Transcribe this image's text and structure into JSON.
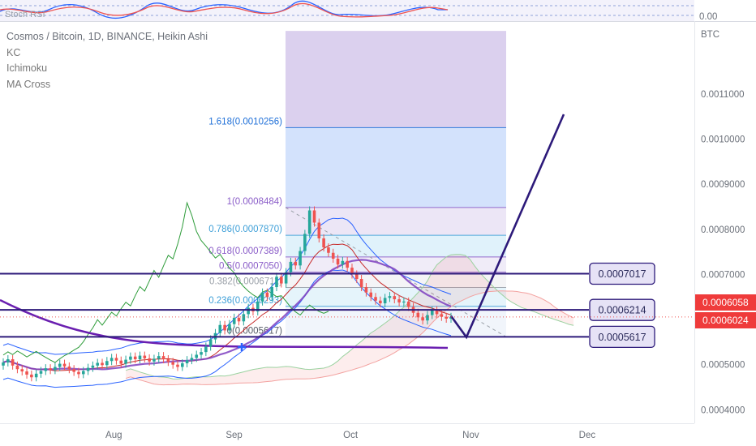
{
  "legend": {
    "title": "Cosmos / Bitcoin, 1D, BINANCE, Heikin Ashi",
    "indicators": [
      "KC",
      "Ichimoku",
      "MA Cross"
    ]
  },
  "stoch_label": "Stoch RSI",
  "stoch_value": "0.00",
  "currency": "BTC",
  "colors": {
    "up": "#26a69a",
    "down": "#ef5350",
    "drawing": "#2d1a7a",
    "kc": "#2962ff",
    "ma_fast": "#c62828",
    "ma_slow": "#7e3fbf",
    "ma_long": "#6a1fb0",
    "lagging": "#2e9c3a",
    "tag_red": "#ef3b3b"
  },
  "chart_data": {
    "type": "candlestick",
    "ylim": [
      0.00037,
      0.00126
    ],
    "y_ticks": [
      "0.0011000",
      "0.0010000",
      "0.0009000",
      "0.0008000",
      "0.0007000",
      "0.0005000",
      "0.0004000"
    ],
    "y_tick_values": [
      0.0011,
      0.001,
      0.0009,
      0.0008,
      0.0007,
      0.0005,
      0.0004
    ],
    "x_ticks": [
      {
        "label": "Aug",
        "day": 31
      },
      {
        "label": "Sep",
        "day": 62
      },
      {
        "label": "Oct",
        "day": 92
      },
      {
        "label": "Nov",
        "day": 123
      },
      {
        "label": "Dec",
        "day": 153
      }
    ],
    "x_range_days": [
      0,
      170
    ],
    "candles": [],
    "fib": {
      "start_day": 64,
      "end_day": 114,
      "levels": [
        {
          "label": "1.618(0.0010256)",
          "value": 0.0010256,
          "color": "#1e6fd8"
        },
        {
          "label": "1(0.0008484)",
          "value": 0.0008484,
          "color": "#8a5cc8"
        },
        {
          "label": "0.786(0.0007870)",
          "value": 0.000787,
          "color": "#3fa0d8"
        },
        {
          "label": "0.618(0.0007389)",
          "value": 0.0007389,
          "color": "#8a5cc8"
        },
        {
          "label": "0.5(0.0007050)",
          "value": 0.000705,
          "color": "#8a5cc8"
        },
        {
          "label": "0.382(0.0006711)",
          "value": 0.0006711,
          "color": "#9aa0a8"
        },
        {
          "label": "0.236(0.0006293)",
          "value": 0.0006293,
          "color": "#3fa0d8"
        },
        {
          "label": "0(0.0005617)",
          "value": 0.0005617,
          "color": "#555a66"
        }
      ],
      "top_value": 0.00124
    },
    "horizontal_levels": [
      {
        "label": "0.0007017",
        "value": 0.0007017
      },
      {
        "label": "0.0006214",
        "value": 0.0006214
      },
      {
        "label": "0.0005617",
        "value": 0.0005617
      }
    ],
    "price_tags": [
      {
        "label": "0.0006058",
        "value": 0.0006058
      },
      {
        "label": "0.0006024",
        "value": 0.0006024
      }
    ],
    "projection": [
      {
        "day": 100,
        "value": 0.000608
      },
      {
        "day": 105,
        "value": 0.000561
      },
      {
        "day": 127,
        "value": 0.001055
      }
    ],
    "candle_values": {
      "closes": [
        0.000505,
        0.000512,
        0.000498,
        0.00049,
        0.000485,
        0.000478,
        0.000472,
        0.00048,
        0.000486,
        0.000492,
        0.000488,
        0.000495,
        0.000502,
        0.000496,
        0.00049,
        0.000484,
        0.000479,
        0.000486,
        0.000493,
        0.000498,
        0.000504,
        0.000499,
        0.000508,
        0.000515,
        0.000509,
        0.000502,
        0.000511,
        0.000518,
        0.000512,
        0.00052,
        0.000514,
        0.000507,
        0.000513,
        0.000519,
        0.000512,
        0.000506,
        0.0005,
        0.000495,
        0.000503,
        0.00051,
        0.000515,
        0.000522,
        0.000528,
        0.00054,
        0.000556,
        0.00057,
        0.000588,
        0.000576,
        0.00059,
        0.000604,
        0.000596,
        0.000612,
        0.000626,
        0.000618,
        0.00064,
        0.00066,
        0.00065,
        0.000672,
        0.000695,
        0.00068,
        0.000705,
        0.000728,
        0.00072,
        0.000752,
        0.00079,
        0.000842,
        0.000815,
        0.00078,
        0.00076,
        0.000748,
        0.000735,
        0.000722,
        0.00073,
        0.000715,
        0.0007,
        0.00069,
        0.000672,
        0.00066,
        0.00065,
        0.000642,
        0.000636,
        0.000648,
        0.000652,
        0.000645,
        0.000638,
        0.00064,
        0.000628,
        0.000615,
        0.000605,
        0.000598,
        0.00061,
        0.00062,
        0.000612,
        0.000606,
        0.000602,
        0.000606
      ],
      "opens": [
        0.000498,
        0.000505,
        0.000512,
        0.000498,
        0.00049,
        0.000485,
        0.000478,
        0.000472,
        0.00048,
        0.000486,
        0.000492,
        0.000488,
        0.000495,
        0.000502,
        0.000496,
        0.00049,
        0.000484,
        0.000479,
        0.000486,
        0.000493,
        0.000498,
        0.000504,
        0.000499,
        0.000508,
        0.000515,
        0.000509,
        0.000502,
        0.000511,
        0.000518,
        0.000512,
        0.00052,
        0.000514,
        0.000507,
        0.000513,
        0.000519,
        0.000512,
        0.000506,
        0.0005,
        0.000495,
        0.000503,
        0.00051,
        0.000515,
        0.000522,
        0.000528,
        0.00054,
        0.000556,
        0.00057,
        0.000588,
        0.000576,
        0.00059,
        0.000604,
        0.000596,
        0.000612,
        0.000626,
        0.000618,
        0.00064,
        0.00066,
        0.00065,
        0.000672,
        0.000695,
        0.00068,
        0.000705,
        0.000728,
        0.00072,
        0.000752,
        0.00079,
        0.000842,
        0.000815,
        0.00078,
        0.00076,
        0.000748,
        0.000735,
        0.000722,
        0.00073,
        0.000715,
        0.0007,
        0.00069,
        0.000672,
        0.00066,
        0.00065,
        0.000642,
        0.000636,
        0.000648,
        0.000652,
        0.000645,
        0.000638,
        0.00064,
        0.000628,
        0.000615,
        0.000605,
        0.000598,
        0.00061,
        0.00062,
        0.000612,
        0.000606,
        0.000602
      ]
    }
  }
}
